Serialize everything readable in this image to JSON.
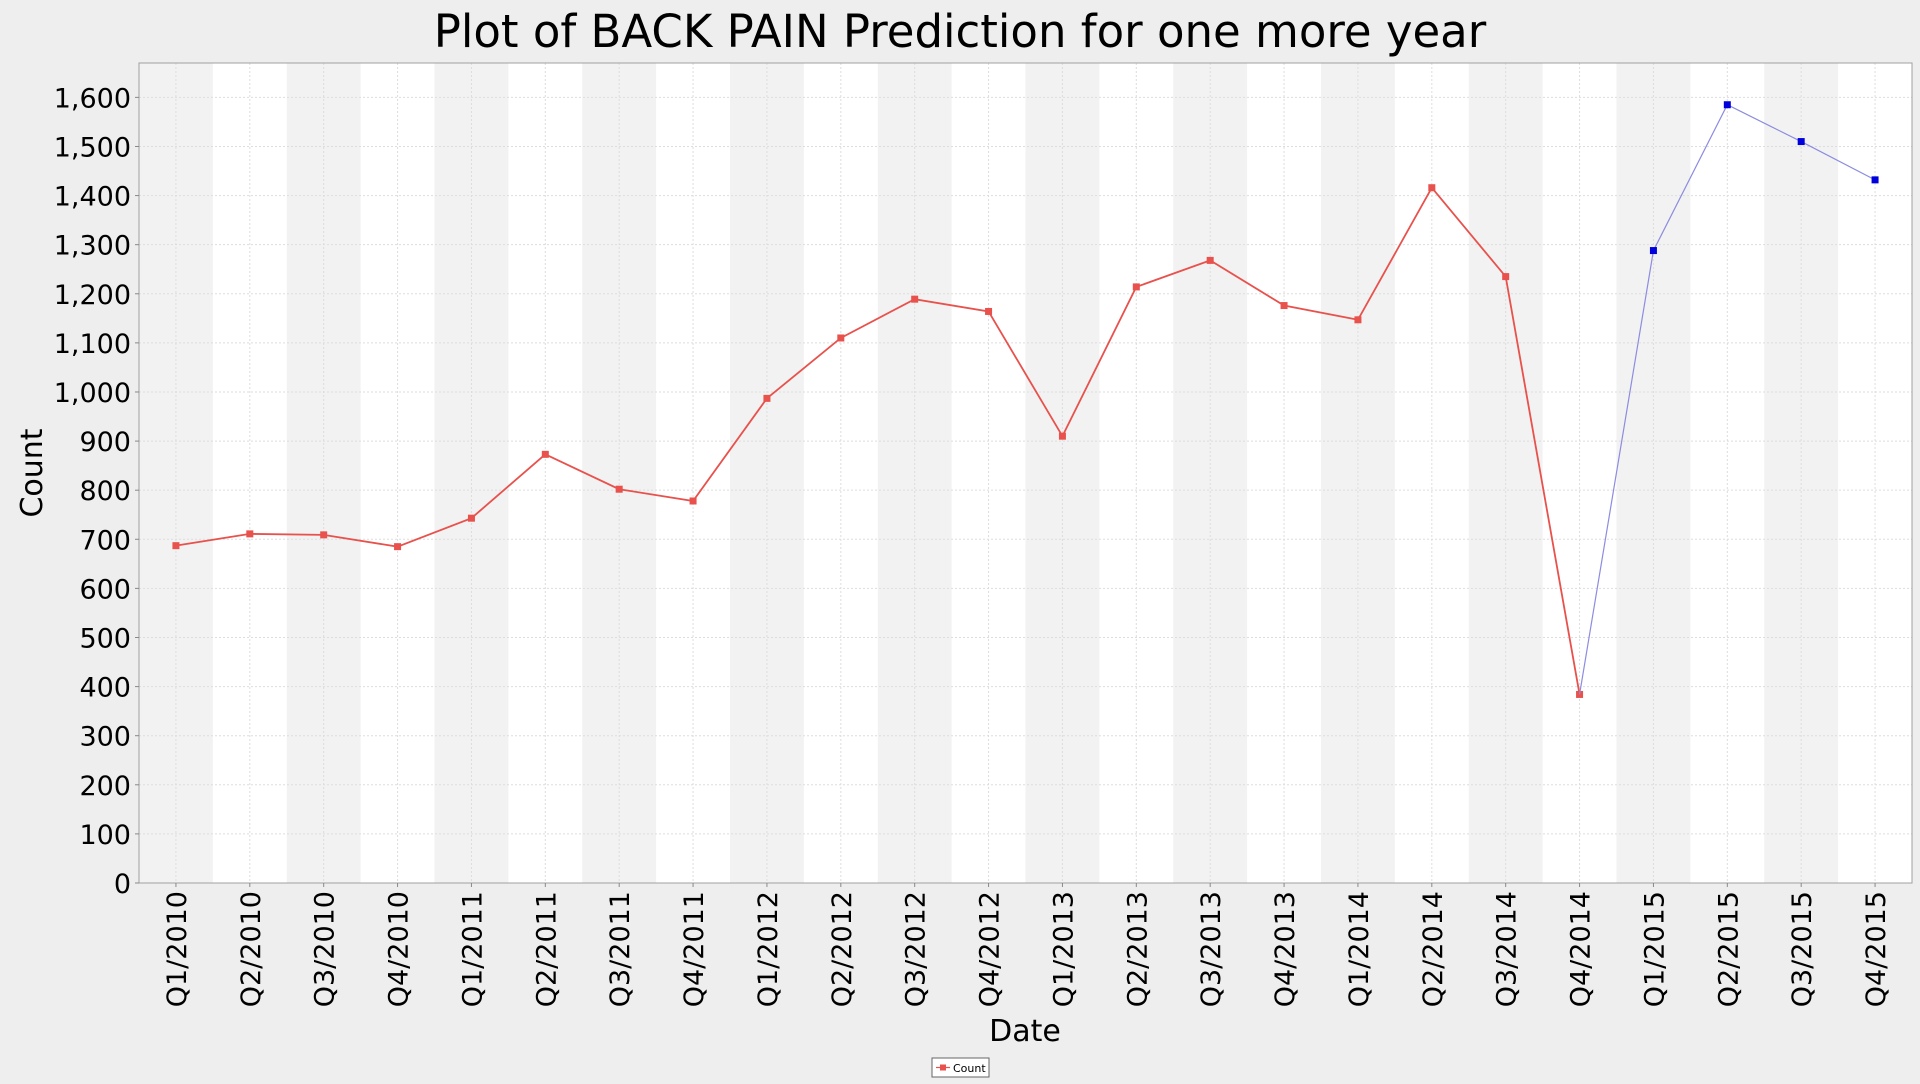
{
  "colors": {
    "page_background": "#eeeeee",
    "plot_background": "#ffffff",
    "band_alt": "#f2f2f2",
    "grid": "#dddddd",
    "actual_series": "#e8514c",
    "predicted_series": "#0000dd",
    "predicted_line": "#8c8ce0"
  },
  "chart_data": {
    "type": "line",
    "title": "Plot of BACK PAIN Prediction for one more year",
    "xlabel": "Date",
    "ylabel": "Count",
    "ylim": [
      0,
      1670
    ],
    "yticks": [
      0,
      100,
      200,
      300,
      400,
      500,
      600,
      700,
      800,
      900,
      1000,
      1100,
      1200,
      1300,
      1400,
      1500,
      1600
    ],
    "ytick_labels": [
      "0",
      "100",
      "200",
      "300",
      "400",
      "500",
      "600",
      "700",
      "800",
      "900",
      "1,000",
      "1,100",
      "1,200",
      "1,300",
      "1,400",
      "1,500",
      "1,600"
    ],
    "grid": true,
    "alternating_bands": true,
    "legend_position": "bottom-center",
    "categories": [
      "Q1/2010",
      "Q2/2010",
      "Q3/2010",
      "Q4/2010",
      "Q1/2011",
      "Q2/2011",
      "Q3/2011",
      "Q4/2011",
      "Q1/2012",
      "Q2/2012",
      "Q3/2012",
      "Q4/2012",
      "Q1/2013",
      "Q2/2013",
      "Q3/2013",
      "Q4/2013",
      "Q1/2014",
      "Q2/2014",
      "Q3/2014",
      "Q4/2014",
      "Q1/2015",
      "Q2/2015",
      "Q3/2015",
      "Q4/2015"
    ],
    "series": [
      {
        "name": "Count",
        "role": "actual",
        "values": [
          687,
          711,
          709,
          685,
          743,
          873,
          802,
          778,
          987,
          1110,
          1189,
          1164,
          910,
          1214,
          1268,
          1176,
          1147,
          1416,
          1235,
          384,
          null,
          null,
          null,
          null
        ]
      },
      {
        "role": "predicted",
        "values": [
          null,
          null,
          null,
          null,
          null,
          null,
          null,
          null,
          null,
          null,
          null,
          null,
          null,
          null,
          null,
          null,
          null,
          null,
          null,
          384,
          1288,
          1585,
          1510,
          1432
        ]
      }
    ]
  }
}
